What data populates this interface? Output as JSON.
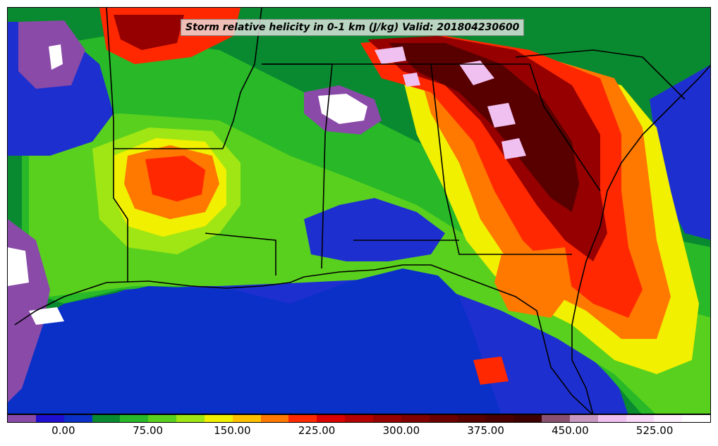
{
  "title": "Storm relative helicity in 0-1 km (J/kg) Valid: 201804230600",
  "colorbar": {
    "colors": [
      "#8a4aa8",
      "#1e0fd0",
      "#0a30c8",
      "#0a8a30",
      "#28b828",
      "#5ad01e",
      "#a0e614",
      "#f0f000",
      "#ffc000",
      "#ff7800",
      "#ff2800",
      "#d80000",
      "#b40000",
      "#960000",
      "#800000",
      "#6a0000",
      "#580000",
      "#4a0000",
      "#3c0000",
      "#8a5070",
      "#c898c0",
      "#f0c0f0",
      "#f8d8f8",
      "#fff0ff",
      "#ffffff"
    ],
    "tick_labels": [
      "0.00",
      "75.00",
      "150.00",
      "225.00",
      "300.00",
      "375.00",
      "450.00",
      "525.00"
    ],
    "tick_values": [
      0,
      75,
      150,
      225,
      300,
      375,
      450,
      525
    ],
    "range": [
      -50,
      575
    ]
  },
  "colors": {
    "ocean_blue": "#1e2fd0",
    "gulf_deep": "#0a30c8",
    "green_dark": "#0a8a30",
    "green": "#28b828",
    "green_light": "#5ad01e",
    "yellow_green": "#a0e614",
    "yellow": "#f0f000",
    "orange": "#ff7800",
    "red": "#ff2800",
    "dark_red": "#960000",
    "maroon": "#580000",
    "purple": "#8a4aa8",
    "pink": "#f0c0f0",
    "white": "#ffffff"
  }
}
